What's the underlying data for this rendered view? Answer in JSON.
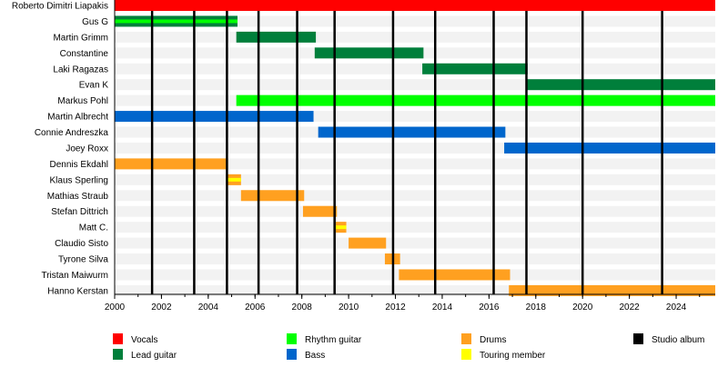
{
  "chart_data": {
    "type": "timeline",
    "xlim": [
      2000,
      2025.67
    ],
    "x_ticks": [
      2000,
      2002,
      2004,
      2006,
      2008,
      2010,
      2012,
      2014,
      2016,
      2018,
      2020,
      2022,
      2024
    ],
    "x_tick_labels": [
      "2000",
      "2002",
      "2004",
      "2006",
      "2008",
      "2010",
      "2012",
      "2014",
      "2016",
      "2018",
      "2020",
      "2022",
      "2024"
    ],
    "minor_tick_interval": 1,
    "colors": {
      "vocals": "#ff0000",
      "lead": "#007f3b",
      "rhythm": "#00ff00",
      "bass": "#0066cc",
      "drums": "#ffa020",
      "touring": "#ffff00",
      "album": "#000000"
    },
    "members": [
      {
        "name": "Roberto Dimitri Liapakis",
        "role": "vocals",
        "start": 2000,
        "end": 2025.67
      },
      {
        "name": "Gus G",
        "role": "lead",
        "secondary": "rhythm",
        "start": 2000,
        "end": 2005.25
      },
      {
        "name": "Martin Grimm",
        "role": "lead",
        "start": 2005.2,
        "end": 2008.6
      },
      {
        "name": "Constantine",
        "role": "lead",
        "start": 2008.55,
        "end": 2013.2
      },
      {
        "name": "Laki Ragazas",
        "role": "lead",
        "start": 2013.15,
        "end": 2017.65
      },
      {
        "name": "Evan K",
        "role": "lead",
        "start": 2017.6,
        "end": 2025.67
      },
      {
        "name": "Markus Pohl",
        "role": "rhythm",
        "start": 2005.2,
        "end": 2025.67
      },
      {
        "name": "Martin Albrecht",
        "role": "bass",
        "start": 2000,
        "end": 2008.5
      },
      {
        "name": "Connie Andreszka",
        "role": "bass",
        "start": 2008.7,
        "end": 2016.7
      },
      {
        "name": "Joey Roxx",
        "role": "bass",
        "start": 2016.65,
        "end": 2025.67
      },
      {
        "name": "Dennis Ekdahl",
        "role": "drums",
        "start": 2000,
        "end": 2004.8
      },
      {
        "name": "Klaus Sperling",
        "role": "drums",
        "secondary": "touring",
        "start": 2004.8,
        "end": 2005.4
      },
      {
        "name": "Mathias Straub",
        "role": "drums",
        "start": 2005.4,
        "end": 2008.1
      },
      {
        "name": "Stefan Dittrich",
        "role": "drums",
        "start": 2008.05,
        "end": 2009.5
      },
      {
        "name": "Matt C.",
        "role": "drums",
        "secondary": "touring",
        "start": 2009.45,
        "end": 2009.9
      },
      {
        "name": "Claudio Sisto",
        "role": "drums",
        "start": 2010.0,
        "end": 2011.6
      },
      {
        "name": "Tyrone Silva",
        "role": "drums",
        "start": 2011.55,
        "end": 2012.2
      },
      {
        "name": "Tristan Maiwurm",
        "role": "drums",
        "start": 2012.15,
        "end": 2016.9
      },
      {
        "name": "Hanno Kerstan",
        "role": "drums",
        "start": 2016.85,
        "end": 2025.67
      }
    ],
    "albums": [
      2001.6,
      2003.4,
      2004.8,
      2006.15,
      2007.8,
      2009.4,
      2011.9,
      2013.7,
      2016.2,
      2017.6,
      2020.0,
      2023.4
    ],
    "legend": [
      {
        "label": "Vocals",
        "color": "#ff0000"
      },
      {
        "label": "Lead guitar",
        "color": "#007f3b"
      },
      {
        "label": "Rhythm guitar",
        "color": "#00ff00"
      },
      {
        "label": "Bass",
        "color": "#0066cc"
      },
      {
        "label": "Drums",
        "color": "#ffa020"
      },
      {
        "label": "Touring member",
        "color": "#ffff00"
      },
      {
        "label": "Studio album",
        "color": "#000000"
      }
    ],
    "legend_placement": "bottom",
    "grid": false
  }
}
